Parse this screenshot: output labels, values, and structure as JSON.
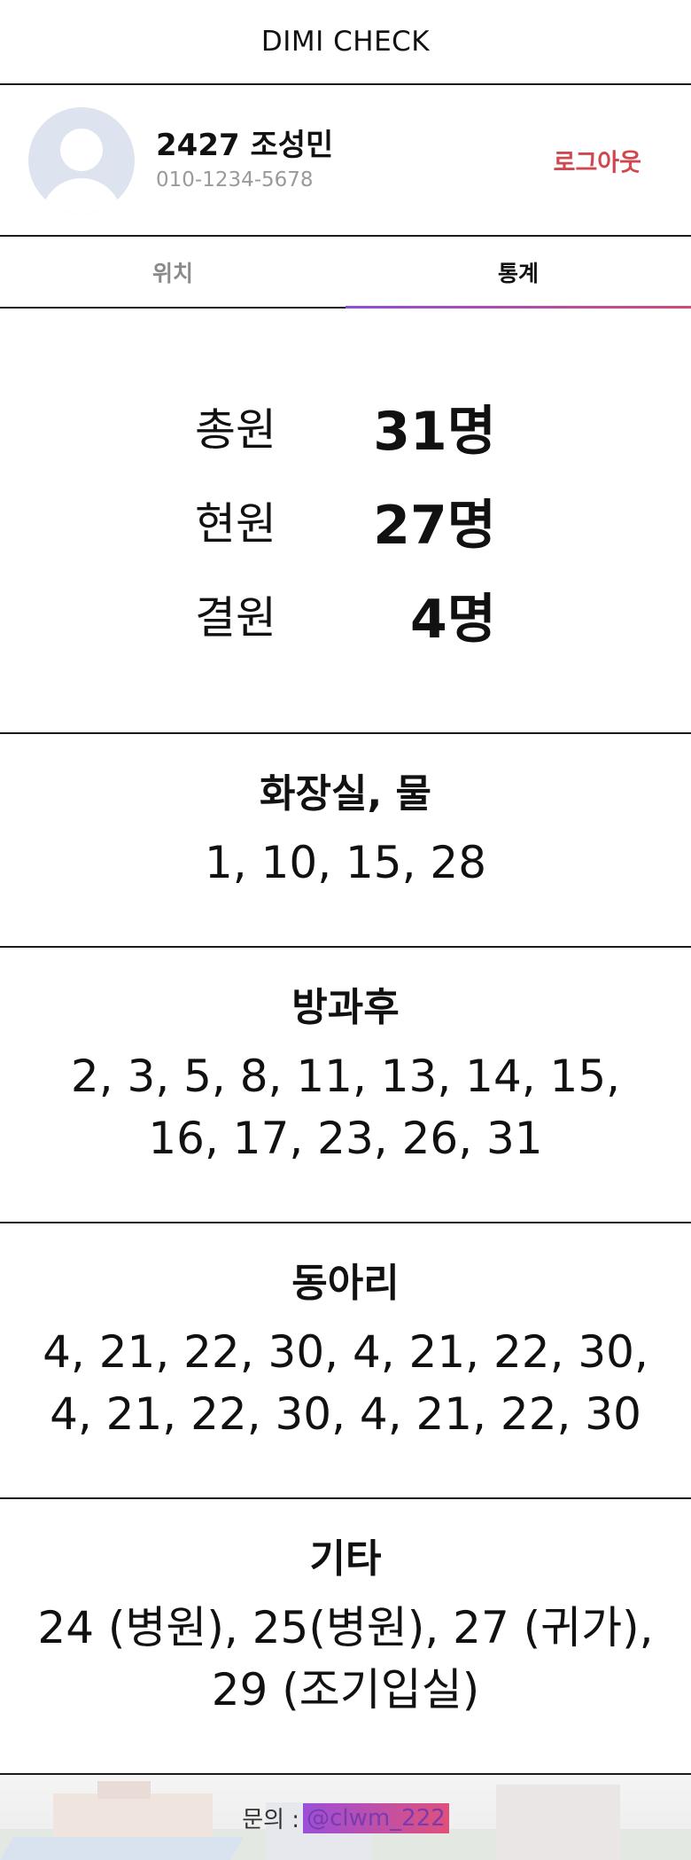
{
  "app": {
    "title": "DIMI CHECK"
  },
  "profile": {
    "name": "2427 조성민",
    "phone": "010-1234-5678",
    "logout_label": "로그아웃"
  },
  "tabs": [
    {
      "label": "위치",
      "active": false
    },
    {
      "label": "통계",
      "active": true
    }
  ],
  "summary": {
    "total": {
      "label": "총원",
      "value": "31명"
    },
    "present": {
      "label": "현원",
      "value": "27명"
    },
    "absent": {
      "label": "결원",
      "value": "4명"
    }
  },
  "sections": [
    {
      "title": "화장실, 물",
      "body": "1, 10, 15, 28"
    },
    {
      "title": "방과후",
      "body": "2, 3, 5, 8, 11, 13, 14, 15, 16, 17, 23, 26, 31"
    },
    {
      "title": "동아리",
      "body": "4, 21, 22, 30, 4, 21, 22, 30, 4, 21, 22, 30, 4, 21, 22, 30"
    },
    {
      "title": "기타",
      "body": "24 (병원), 25(병원), 27 (귀가), 29 (조기입실)"
    }
  ],
  "footer": {
    "contact_label": "문의 :",
    "contact_handle": "@clwm_222"
  },
  "colors": {
    "logout": "#d0474f",
    "tab_indicator_start": "#8e4fd9",
    "tab_indicator_end": "#d04a7a",
    "avatar_bg": "#dde3ef"
  }
}
